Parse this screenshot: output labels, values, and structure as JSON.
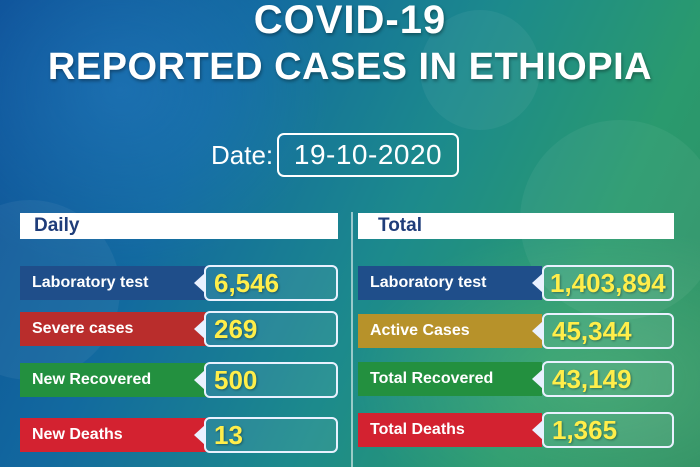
{
  "header": {
    "line1": "COVID-19",
    "line2": "REPORTED CASES IN ETHIOPIA"
  },
  "date": {
    "label": "Date:",
    "value": "19-10-2020"
  },
  "daily": {
    "title": "Daily",
    "rows": [
      {
        "label": "Laboratory test",
        "value": "6,546",
        "color": "#1f4e8a"
      },
      {
        "label": "Severe cases",
        "value": "269",
        "color": "#b92d2c"
      },
      {
        "label": "New Recovered",
        "value": "500",
        "color": "#23903f"
      },
      {
        "label": "New Deaths",
        "value": "13",
        "color": "#d32230"
      }
    ]
  },
  "total": {
    "title": "Total",
    "rows": [
      {
        "label": "Laboratory test",
        "value": "1,403,894",
        "color": "#1f4e8a"
      },
      {
        "label": "Active Cases",
        "value": "45,344",
        "color": "#b7922a"
      },
      {
        "label": "Total Recovered",
        "value": "43,149",
        "color": "#23903f"
      },
      {
        "label": "Total Deaths",
        "value": "1,365",
        "color": "#d32230"
      }
    ]
  }
}
